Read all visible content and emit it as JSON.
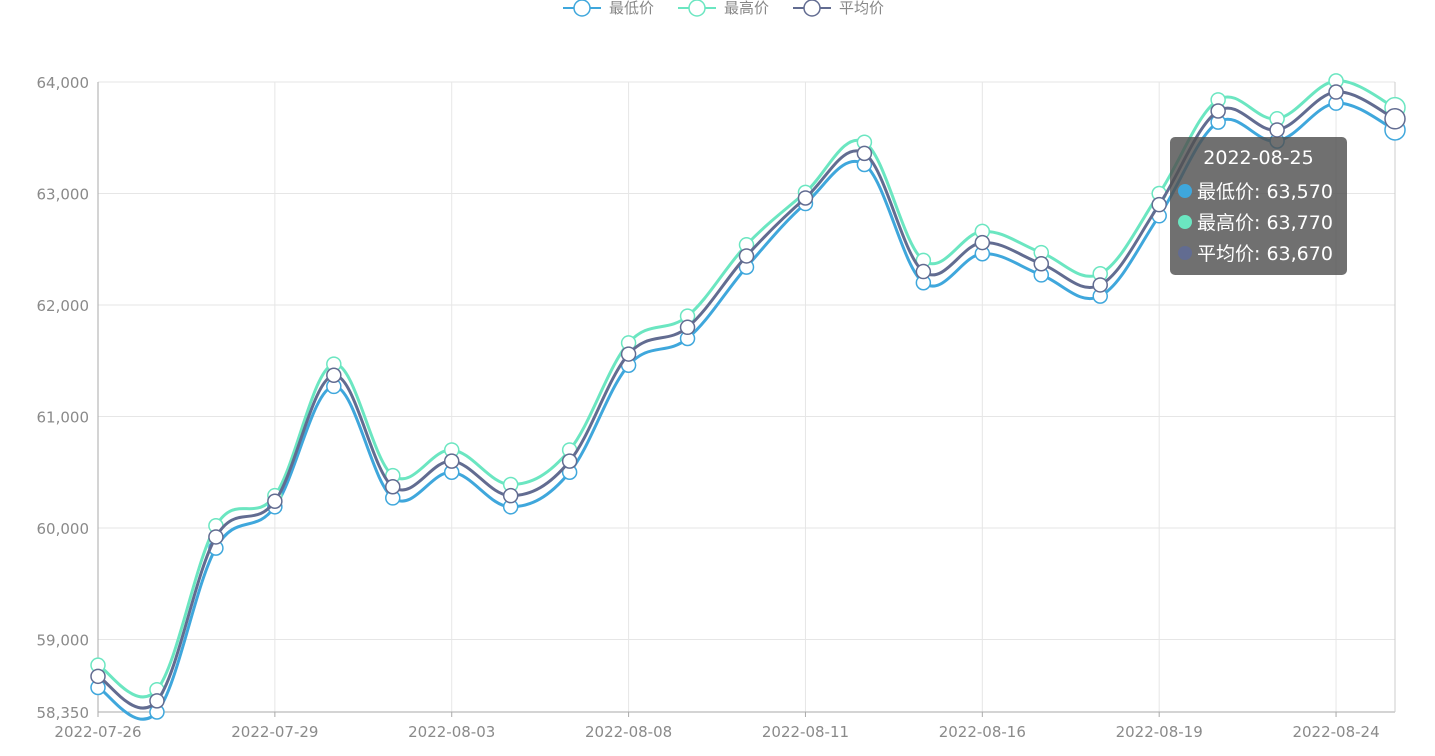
{
  "chart_data": {
    "type": "line",
    "smooth": true,
    "legend_position": "top-center",
    "grid": true,
    "ylim": [
      58350,
      64000
    ],
    "y_ticks": [
      {
        "value": 58350,
        "label": "58,350"
      },
      {
        "value": 59000,
        "label": "59,000"
      },
      {
        "value": 60000,
        "label": "60,000"
      },
      {
        "value": 61000,
        "label": "61,000"
      },
      {
        "value": 62000,
        "label": "62,000"
      },
      {
        "value": 63000,
        "label": "63,000"
      },
      {
        "value": 64000,
        "label": "64,000"
      }
    ],
    "x_tick_labels": [
      "2022-07-26",
      "2022-07-29",
      "2022-08-03",
      "2022-08-08",
      "2022-08-11",
      "2022-08-16",
      "2022-08-19",
      "2022-08-24"
    ],
    "x_label_every": 3,
    "x": [
      "2022-07-26",
      "2022-07-27",
      "2022-07-28",
      "2022-07-29",
      "2022-08-01",
      "2022-08-02",
      "2022-08-03",
      "2022-08-04",
      "2022-08-05",
      "2022-08-08",
      "2022-08-09",
      "2022-08-10",
      "2022-08-11",
      "2022-08-12",
      "2022-08-15",
      "2022-08-16",
      "2022-08-17",
      "2022-08-18",
      "2022-08-19",
      "2022-08-22",
      "2022-08-23",
      "2022-08-24",
      "2022-08-25"
    ],
    "series": [
      {
        "name": "最低价",
        "color": "#3fa7dc",
        "values": [
          58570,
          58350,
          59820,
          60190,
          61270,
          60270,
          60500,
          60190,
          60500,
          61460,
          61700,
          62340,
          62910,
          63260,
          62200,
          62460,
          62270,
          62080,
          62800,
          63640,
          63470,
          63810,
          63570
        ]
      },
      {
        "name": "最高价",
        "color": "#6be6c1",
        "values": [
          58770,
          58550,
          60020,
          60290,
          61470,
          60470,
          60700,
          60390,
          60700,
          61660,
          61900,
          62540,
          63010,
          63460,
          62400,
          62660,
          62470,
          62280,
          63000,
          63840,
          63670,
          64010,
          63770
        ]
      },
      {
        "name": "平均价",
        "color": "#626c91",
        "values": [
          58670,
          58450,
          59920,
          60240,
          61370,
          60370,
          60600,
          60290,
          60600,
          61560,
          61800,
          62440,
          62960,
          63360,
          62300,
          62560,
          62370,
          62180,
          62900,
          63740,
          63570,
          63910,
          63670
        ]
      }
    ]
  },
  "tooltip": {
    "title": "2022-08-25",
    "rows": [
      {
        "label": "最低价: 63,570",
        "color": "#3fa7dc"
      },
      {
        "label": "最高价: 63,770",
        "color": "#6be6c1"
      },
      {
        "label": "平均价: 63,670",
        "color": "#626c91"
      }
    ]
  }
}
